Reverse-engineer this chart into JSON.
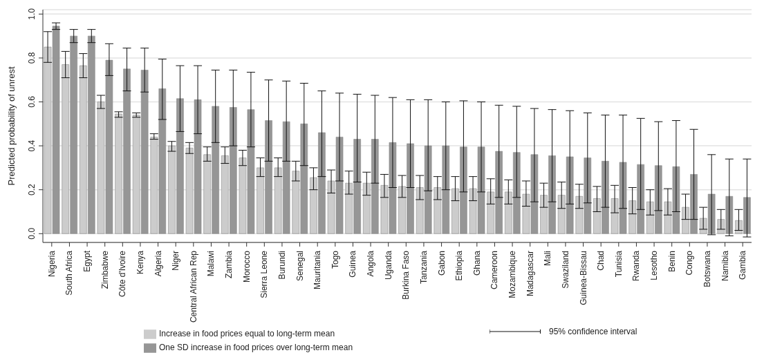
{
  "chart_data": {
    "type": "bar",
    "ylabel": "Predicted probability of unrest",
    "categories": [
      "Nigeria",
      "South Africa",
      "Egypt",
      "Zimbabwe",
      "Côte d'Ivoire",
      "Kenya",
      "Algeria",
      "Niger",
      "Central African Rep",
      "Malawi",
      "Zambia",
      "Morocco",
      "Sierra Leone",
      "Burundi",
      "Senegal",
      "Mauritania",
      "Togo",
      "Guinea",
      "Angola",
      "Uganda",
      "Burkina Faso",
      "Tanzania",
      "Gabon",
      "Ethiopia",
      "Ghana",
      "Cameroon",
      "Mozambique",
      "Madagascar",
      "Mali",
      "Swaziland",
      "Guinea-Bissau",
      "Chad",
      "Tunisia",
      "Rwanda",
      "Lesotho",
      "Benin",
      "Congo",
      "Botswana",
      "Namibia",
      "Gambia"
    ],
    "series": [
      {
        "name": "Increase in food prices equal to long-term mean",
        "color": "#cccccc",
        "values": [
          0.85,
          0.77,
          0.765,
          0.6,
          0.545,
          0.54,
          0.44,
          0.4,
          0.39,
          0.36,
          0.355,
          0.345,
          0.3,
          0.3,
          0.285,
          0.255,
          0.24,
          0.23,
          0.23,
          0.22,
          0.215,
          0.21,
          0.21,
          0.205,
          0.205,
          0.19,
          0.19,
          0.18,
          0.175,
          0.175,
          0.17,
          0.16,
          0.16,
          0.15,
          0.145,
          0.145,
          0.12,
          0.07,
          0.065,
          0.06
        ],
        "errors": [
          [
            0.78,
            0.92
          ],
          [
            0.71,
            0.83
          ],
          [
            0.71,
            0.82
          ],
          [
            0.57,
            0.63
          ],
          [
            0.53,
            0.555
          ],
          [
            0.53,
            0.55
          ],
          [
            0.43,
            0.455
          ],
          [
            0.375,
            0.42
          ],
          [
            0.365,
            0.415
          ],
          [
            0.33,
            0.395
          ],
          [
            0.32,
            0.395
          ],
          [
            0.31,
            0.38
          ],
          [
            0.26,
            0.345
          ],
          [
            0.26,
            0.345
          ],
          [
            0.24,
            0.33
          ],
          [
            0.2,
            0.3
          ],
          [
            0.185,
            0.29
          ],
          [
            0.18,
            0.285
          ],
          [
            0.175,
            0.28
          ],
          [
            0.165,
            0.27
          ],
          [
            0.165,
            0.265
          ],
          [
            0.155,
            0.265
          ],
          [
            0.155,
            0.26
          ],
          [
            0.15,
            0.26
          ],
          [
            0.15,
            0.26
          ],
          [
            0.135,
            0.25
          ],
          [
            0.135,
            0.245
          ],
          [
            0.125,
            0.24
          ],
          [
            0.12,
            0.23
          ],
          [
            0.115,
            0.235
          ],
          [
            0.115,
            0.225
          ],
          [
            0.1,
            0.215
          ],
          [
            0.095,
            0.22
          ],
          [
            0.09,
            0.21
          ],
          [
            0.085,
            0.2
          ],
          [
            0.085,
            0.205
          ],
          [
            0.065,
            0.18
          ],
          [
            0.02,
            0.12
          ],
          [
            0.02,
            0.11
          ],
          [
            0.015,
            0.11
          ]
        ]
      },
      {
        "name": "One SD increase in food prices over long-term mean",
        "color": "#969696",
        "values": [
          0.945,
          0.9,
          0.9,
          0.79,
          0.75,
          0.745,
          0.66,
          0.615,
          0.61,
          0.58,
          0.575,
          0.565,
          0.515,
          0.51,
          0.5,
          0.46,
          0.44,
          0.43,
          0.43,
          0.415,
          0.41,
          0.4,
          0.4,
          0.395,
          0.395,
          0.375,
          0.37,
          0.36,
          0.355,
          0.35,
          0.345,
          0.33,
          0.325,
          0.315,
          0.31,
          0.305,
          0.27,
          0.18,
          0.17,
          0.165
        ],
        "errors": [
          [
            0.93,
            0.96
          ],
          [
            0.87,
            0.93
          ],
          [
            0.87,
            0.93
          ],
          [
            0.72,
            0.865
          ],
          [
            0.65,
            0.845
          ],
          [
            0.645,
            0.845
          ],
          [
            0.52,
            0.795
          ],
          [
            0.465,
            0.765
          ],
          [
            0.455,
            0.765
          ],
          [
            0.415,
            0.745
          ],
          [
            0.4,
            0.745
          ],
          [
            0.395,
            0.735
          ],
          [
            0.33,
            0.7
          ],
          [
            0.33,
            0.695
          ],
          [
            0.31,
            0.685
          ],
          [
            0.26,
            0.65
          ],
          [
            0.24,
            0.64
          ],
          [
            0.235,
            0.635
          ],
          [
            0.23,
            0.63
          ],
          [
            0.21,
            0.62
          ],
          [
            0.21,
            0.61
          ],
          [
            0.195,
            0.61
          ],
          [
            0.2,
            0.6
          ],
          [
            0.19,
            0.605
          ],
          [
            0.19,
            0.6
          ],
          [
            0.165,
            0.585
          ],
          [
            0.165,
            0.58
          ],
          [
            0.145,
            0.57
          ],
          [
            0.145,
            0.565
          ],
          [
            0.135,
            0.56
          ],
          [
            0.14,
            0.55
          ],
          [
            0.12,
            0.54
          ],
          [
            0.115,
            0.54
          ],
          [
            0.11,
            0.525
          ],
          [
            0.105,
            0.51
          ],
          [
            0.1,
            0.515
          ],
          [
            0.065,
            0.475
          ],
          [
            -0.005,
            0.36
          ],
          [
            -0.01,
            0.34
          ],
          [
            -0.015,
            0.34
          ]
        ]
      }
    ],
    "ylim": [
      -0.04,
      1.02
    ],
    "yticks": [
      {
        "value": 0,
        "label": "0.0"
      },
      {
        "value": 0.2,
        "label": "0.2"
      },
      {
        "value": 0.4,
        "label": "0.4"
      },
      {
        "value": 0.6,
        "label": "0.6"
      },
      {
        "value": 0.8,
        "label": "0.8"
      },
      {
        "value": 1,
        "label": "1.0"
      }
    ],
    "grid": "y",
    "legend": "bottom",
    "annotations": [
      "95% confidence interval"
    ]
  }
}
